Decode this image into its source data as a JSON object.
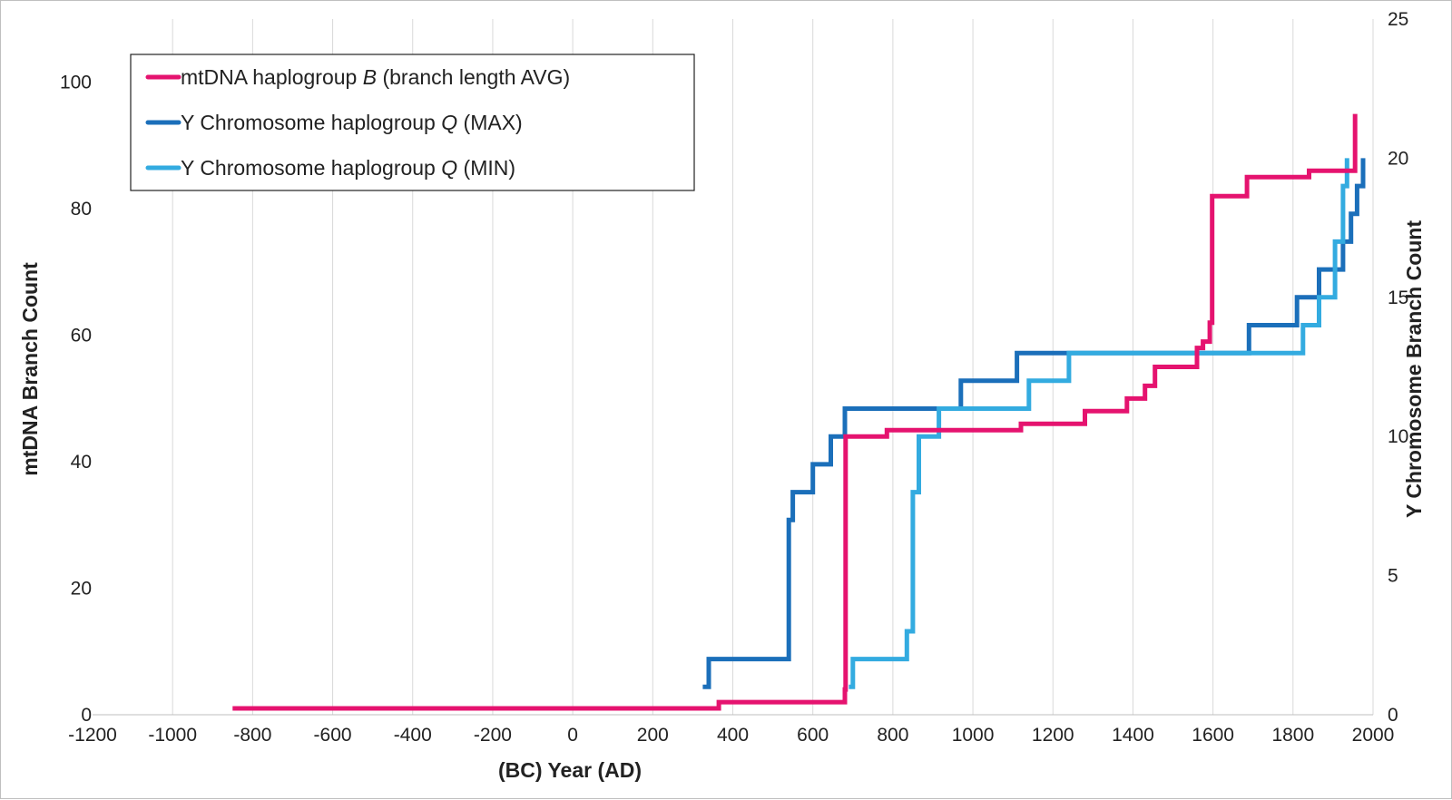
{
  "chart_data": {
    "type": "line",
    "step": true,
    "xlabel": "(BC) Year (AD)",
    "ylabel_left": "mtDNA Branch Count",
    "ylabel_right": "Y Chromosome Branch Count",
    "x_ticks": [
      -1200,
      -1000,
      -800,
      -600,
      -400,
      -200,
      0,
      200,
      400,
      600,
      800,
      1000,
      1200,
      1400,
      1600,
      1800,
      2000
    ],
    "x_tick_labels": [
      "-1200",
      "-1000",
      "-800",
      "-600",
      "-400",
      "-200",
      "0",
      "200",
      "400",
      "600",
      "800",
      "1000",
      "1200",
      "1400",
      "1600",
      "1800",
      "2000"
    ],
    "xlim": [
      -1200,
      2000
    ],
    "ylim_left": [
      0,
      110
    ],
    "y_ticks_left": [
      0,
      20,
      40,
      60,
      80,
      100
    ],
    "y_tick_labels_left": [
      "0",
      "20",
      "40",
      "60",
      "80",
      "100"
    ],
    "ylim_right": [
      0,
      25
    ],
    "y_ticks_right": [
      0,
      5,
      10,
      15,
      20,
      25
    ],
    "y_tick_labels_right": [
      "0",
      "5",
      "10",
      "15",
      "20",
      "25"
    ],
    "grid": "vertical",
    "legend_position": "top-left",
    "series": [
      {
        "name_prefix": "mtDNA haplogroup ",
        "name_italic": "B",
        "name_suffix": " (branch length AVG)",
        "axis": "left",
        "color": "#e5136f",
        "points": [
          [
            -850,
            1
          ],
          [
            365,
            1
          ],
          [
            365,
            2
          ],
          [
            680,
            2
          ],
          [
            680,
            4
          ],
          [
            682,
            4
          ],
          [
            682,
            44
          ],
          [
            785,
            44
          ],
          [
            785,
            45
          ],
          [
            1120,
            45
          ],
          [
            1120,
            46
          ],
          [
            1280,
            46
          ],
          [
            1280,
            48
          ],
          [
            1385,
            48
          ],
          [
            1385,
            50
          ],
          [
            1430,
            50
          ],
          [
            1430,
            52
          ],
          [
            1455,
            52
          ],
          [
            1455,
            55
          ],
          [
            1560,
            55
          ],
          [
            1560,
            58
          ],
          [
            1575,
            58
          ],
          [
            1575,
            59
          ],
          [
            1592,
            59
          ],
          [
            1592,
            62
          ],
          [
            1598,
            62
          ],
          [
            1598,
            82
          ],
          [
            1685,
            82
          ],
          [
            1685,
            85
          ],
          [
            1840,
            85
          ],
          [
            1840,
            86
          ],
          [
            1955,
            86
          ],
          [
            1955,
            95
          ]
        ]
      },
      {
        "name_prefix": "Y Chromosome haplogroup ",
        "name_italic": "Q",
        "name_suffix": " (MAX)",
        "axis": "right",
        "color": "#1b6fba",
        "points": [
          [
            325,
            1
          ],
          [
            340,
            1
          ],
          [
            340,
            2
          ],
          [
            540,
            2
          ],
          [
            540,
            7
          ],
          [
            550,
            7
          ],
          [
            550,
            8
          ],
          [
            600,
            8
          ],
          [
            600,
            9
          ],
          [
            645,
            9
          ],
          [
            645,
            10
          ],
          [
            680,
            10
          ],
          [
            680,
            11
          ],
          [
            970,
            11
          ],
          [
            970,
            12
          ],
          [
            1110,
            12
          ],
          [
            1110,
            13
          ],
          [
            1240,
            13
          ],
          [
            1240,
            13
          ],
          [
            1690,
            13
          ],
          [
            1690,
            14
          ],
          [
            1810,
            14
          ],
          [
            1810,
            15
          ],
          [
            1865,
            15
          ],
          [
            1865,
            16
          ],
          [
            1925,
            16
          ],
          [
            1925,
            17
          ],
          [
            1945,
            17
          ],
          [
            1945,
            18
          ],
          [
            1960,
            18
          ],
          [
            1960,
            19
          ],
          [
            1975,
            19
          ],
          [
            1975,
            20
          ]
        ]
      },
      {
        "name_prefix": "Y Chromosome haplogroup ",
        "name_italic": "Q",
        "name_suffix": " (MIN)",
        "axis": "right",
        "color": "#33abe0",
        "points": [
          [
            690,
            1
          ],
          [
            700,
            1
          ],
          [
            700,
            2
          ],
          [
            835,
            2
          ],
          [
            835,
            3
          ],
          [
            850,
            3
          ],
          [
            850,
            8
          ],
          [
            865,
            8
          ],
          [
            865,
            10
          ],
          [
            915,
            10
          ],
          [
            915,
            11
          ],
          [
            1140,
            11
          ],
          [
            1140,
            12
          ],
          [
            1240,
            12
          ],
          [
            1240,
            13
          ],
          [
            1825,
            13
          ],
          [
            1825,
            14
          ],
          [
            1865,
            14
          ],
          [
            1865,
            15
          ],
          [
            1905,
            15
          ],
          [
            1905,
            17
          ],
          [
            1925,
            17
          ],
          [
            1925,
            19
          ],
          [
            1935,
            19
          ],
          [
            1935,
            20
          ]
        ]
      }
    ]
  }
}
